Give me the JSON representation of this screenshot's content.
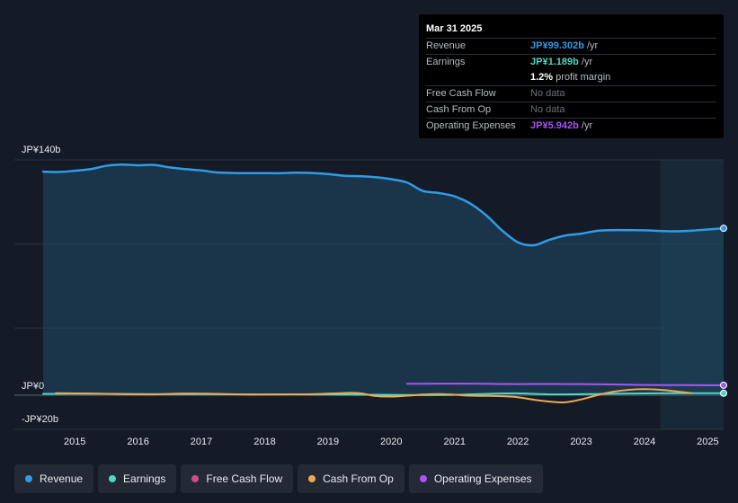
{
  "tooltip": {
    "date": "Mar 31 2025",
    "rows": [
      {
        "label": "Revenue",
        "value": "JP¥99.302b",
        "suffix": " /yr",
        "color": "#2f9ce8"
      },
      {
        "label": "Earnings",
        "value": "JP¥1.189b",
        "suffix": " /yr",
        "color": "#4fd8c4"
      },
      {
        "label": "",
        "value": "1.2%",
        "suffix": " profit margin",
        "color": "#ffffff"
      },
      {
        "label": "Free Cash Flow",
        "value": "",
        "suffix": "No data",
        "color": ""
      },
      {
        "label": "Cash From Op",
        "value": "",
        "suffix": "No data",
        "color": ""
      },
      {
        "label": "Operating Expenses",
        "value": "JP¥5.942b",
        "suffix": " /yr",
        "color": "#a855f7"
      }
    ]
  },
  "legend": [
    {
      "label": "Revenue",
      "color": "#2f9ce8"
    },
    {
      "label": "Earnings",
      "color": "#4fd8c4"
    },
    {
      "label": "Free Cash Flow",
      "color": "#d14b86"
    },
    {
      "label": "Cash From Op",
      "color": "#f0a84f"
    },
    {
      "label": "Operating Expenses",
      "color": "#a855f7"
    }
  ],
  "chart_data": {
    "type": "area",
    "ylim": [
      -20,
      140
    ],
    "y_tick_labels": [
      {
        "value": 140,
        "label": "JP¥140b"
      },
      {
        "value": 0,
        "label": "JP¥0"
      },
      {
        "value": -20,
        "label": "-JP¥20b"
      }
    ],
    "x_tick_labels": [
      "2015",
      "2016",
      "2017",
      "2018",
      "2019",
      "2020",
      "2021",
      "2022",
      "2023",
      "2024",
      "2025"
    ],
    "xlim": [
      2014.4,
      2025.25
    ],
    "grid": true,
    "legend_position": "bottom",
    "highlight_from": 2024.25,
    "series": [
      {
        "name": "Revenue",
        "color": "#2f9ce8",
        "fill": true,
        "x": [
          2014.5,
          2014.75,
          2015.0,
          2015.25,
          2015.5,
          2015.75,
          2016.0,
          2016.25,
          2016.5,
          2016.75,
          2017.0,
          2017.25,
          2017.5,
          2017.75,
          2018.0,
          2018.25,
          2018.5,
          2018.75,
          2019.0,
          2019.25,
          2019.5,
          2019.75,
          2020.0,
          2020.25,
          2020.5,
          2020.75,
          2021.0,
          2021.25,
          2021.5,
          2021.75,
          2022.0,
          2022.25,
          2022.5,
          2022.75,
          2023.0,
          2023.25,
          2023.5,
          2023.75,
          2024.0,
          2024.25,
          2024.5,
          2024.75,
          2025.0,
          2025.25
        ],
        "values": [
          133,
          132.8,
          133.5,
          134.5,
          136.5,
          137.2,
          136.8,
          137,
          135.5,
          134.5,
          133.7,
          132.5,
          132.2,
          132.1,
          132.1,
          132.1,
          132.4,
          132.2,
          131.6,
          130.6,
          130.3,
          129.7,
          128.5,
          126.5,
          121.5,
          120.3,
          118.3,
          114,
          107,
          98,
          91,
          89.2,
          92.5,
          95,
          96.1,
          97.8,
          98.2,
          98.2,
          98.1,
          97.7,
          97.5,
          97.9,
          98.6,
          99.3
        ]
      },
      {
        "name": "Earnings",
        "color": "#4fd8c4",
        "fill": false,
        "x": [
          2014.5,
          2015.0,
          2016.0,
          2017.0,
          2018.0,
          2019.0,
          2019.5,
          2020.0,
          2020.5,
          2021.0,
          2021.5,
          2022.0,
          2022.5,
          2023.0,
          2023.5,
          2024.0,
          2024.5,
          2025.0,
          2025.25
        ],
        "values": [
          0.8,
          0.9,
          0.7,
          0.6,
          0.5,
          0.4,
          0.3,
          0.2,
          0.1,
          0.2,
          0.8,
          1.1,
          0.5,
          0.6,
          0.9,
          1.1,
          1.2,
          1.2,
          1.19
        ]
      },
      {
        "name": "Cash From Op",
        "color": "#f0a84f",
        "fill": false,
        "x": [
          2014.7,
          2015.25,
          2015.75,
          2016.25,
          2016.75,
          2017.25,
          2017.75,
          2018.25,
          2018.75,
          2019.25,
          2019.5,
          2019.75,
          2020.0,
          2020.25,
          2020.5,
          2020.75,
          2021.0,
          2021.25,
          2021.5,
          2021.75,
          2022.0,
          2022.25,
          2022.5,
          2022.75,
          2023.0,
          2023.25,
          2023.5,
          2023.75,
          2024.0,
          2024.25,
          2024.5,
          2024.75
        ],
        "values": [
          1.2,
          1.0,
          0.6,
          0.5,
          1.0,
          0.8,
          0.4,
          0.5,
          0.6,
          1.3,
          1.2,
          -0.5,
          -0.8,
          -0.3,
          0.4,
          0.7,
          0.3,
          -0.3,
          -0.4,
          -0.6,
          -1.2,
          -2.7,
          -3.8,
          -4.2,
          -2.5,
          0.0,
          2.0,
          3.2,
          3.6,
          3.2,
          2.3,
          1.2
        ]
      },
      {
        "name": "Operating Expenses",
        "color": "#a855f7",
        "fill": false,
        "x": [
          2020.25,
          2020.5,
          2021.0,
          2021.5,
          2022.0,
          2022.5,
          2023.0,
          2023.5,
          2024.0,
          2024.5,
          2025.0,
          2025.25
        ],
        "values": [
          6.8,
          6.8,
          6.9,
          6.8,
          6.6,
          6.7,
          6.6,
          6.4,
          6.1,
          6.0,
          5.95,
          5.94
        ]
      }
    ]
  }
}
